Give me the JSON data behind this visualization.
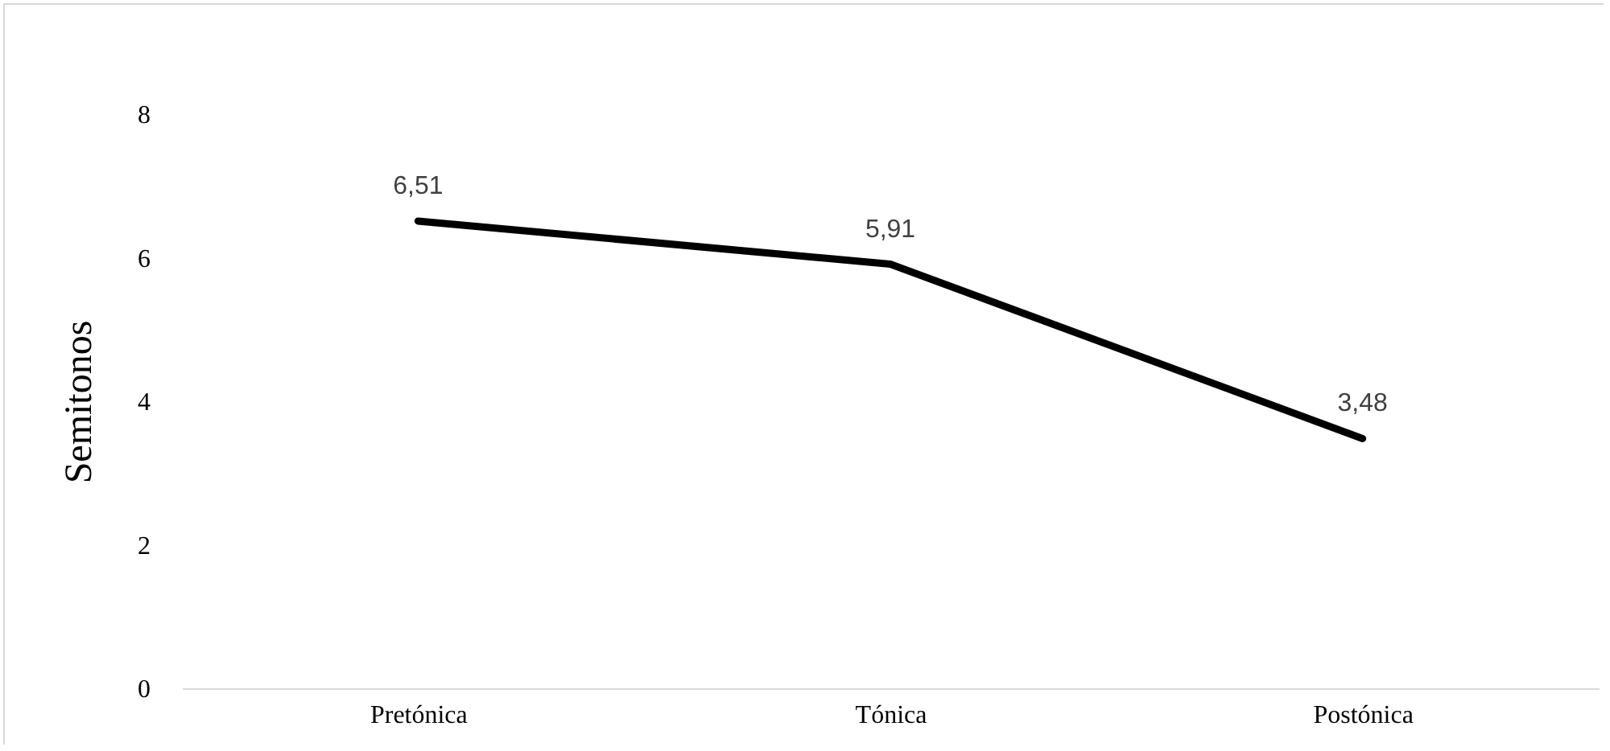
{
  "chart_data": {
    "type": "line",
    "ylabel": "Semitonos",
    "categories": [
      "Pretónica",
      "Tónica",
      "Postónica"
    ],
    "series": [
      {
        "color": "#000000",
        "values": [
          6.51,
          5.91,
          3.48
        ],
        "value_labels": [
          "6,51",
          "5,91",
          "3,48"
        ]
      }
    ],
    "ylim": [
      0,
      8
    ],
    "yticks": [
      0,
      2,
      4,
      6,
      8
    ],
    "grid": false,
    "marker": "none",
    "line_style": "solid"
  }
}
